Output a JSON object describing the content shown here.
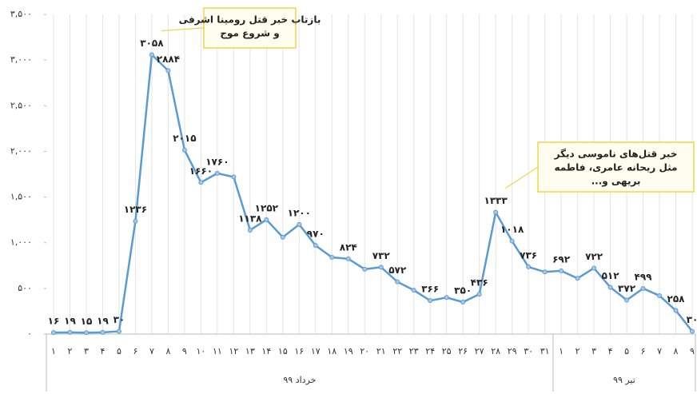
{
  "chart_data": {
    "type": "line",
    "categories": [
      "۱",
      "۲",
      "۳",
      "۴",
      "۵",
      "۶",
      "۷",
      "۸",
      "۹",
      "۱۰",
      "۱۱",
      "۱۲",
      "۱۳",
      "۱۴",
      "۱۵",
      "۱۶",
      "۱۷",
      "۱۸",
      "۱۹",
      "۲۰",
      "۲۱",
      "۲۲",
      "۲۳",
      "۲۴",
      "۲۵",
      "۲۶",
      "۲۷",
      "۲۸",
      "۲۹",
      "۳۰",
      "۳۱",
      "۱",
      "۲",
      "۳",
      "۴",
      "۵",
      "۶",
      "۷",
      "۸",
      "۹"
    ],
    "groups": [
      {
        "label": "خرداد ۹۹",
        "count": 31
      },
      {
        "label": "تیر ۹۹",
        "count": 9
      }
    ],
    "series": [
      {
        "color": "#5b9bd5",
        "values": [
          16,
          19,
          15,
          19,
          30,
          1236,
          3058,
          2884,
          2015,
          1660,
          1760,
          1720,
          1138,
          1252,
          1060,
          1200,
          970,
          840,
          824,
          710,
          732,
          572,
          480,
          366,
          400,
          350,
          436,
          1333,
          1018,
          736,
          680,
          692,
          610,
          722,
          512,
          372,
          499,
          420,
          258,
          30
        ],
        "value_labels": [
          "۱۶",
          "۱۹",
          "۱۵",
          "۱۹",
          "۳۰",
          "۱۲۳۶",
          "۳۰۵۸",
          "۲۸۸۴",
          "۲۰۱۵",
          "۱۶۶۰",
          "۱۷۶۰",
          null,
          "۱۱۳۸",
          "۱۲۵۲",
          null,
          "۱۲۰۰",
          "۹۷۰",
          null,
          "۸۲۴",
          null,
          "۷۳۲",
          "۵۷۲",
          null,
          "۳۶۶",
          null,
          "۳۵۰",
          "۴۳۶",
          "۱۳۳۳",
          "۱۰۱۸",
          "۷۳۶",
          null,
          "۶۹۲",
          null,
          "۷۲۲",
          "۵۱۲",
          "۳۷۲",
          "۴۹۹",
          null,
          "۲۵۸",
          "۳۰"
        ]
      }
    ],
    "ylim": [
      0,
      3500
    ],
    "yticks": [
      {
        "value": 0,
        "label": "۰"
      },
      {
        "value": 500,
        "label": "۵۰۰"
      },
      {
        "value": 1000,
        "label": "۱,۰۰۰"
      },
      {
        "value": 1500,
        "label": "۱,۵۰۰"
      },
      {
        "value": 2000,
        "label": "۲,۰۰۰"
      },
      {
        "value": 2500,
        "label": "۲,۵۰۰"
      },
      {
        "value": 3000,
        "label": "۳,۰۰۰"
      },
      {
        "value": 3500,
        "label": "۳,۵۰۰"
      }
    ],
    "annotations": [
      {
        "lines": [
          "بازتاب خبر قتل رومینا اشرفی",
          "و شروع موج"
        ],
        "index": 6
      },
      {
        "lines": [
          "خبر قتل‌های ناموسی دیگر",
          "مثل ریحانه عامری، فاطمه",
          "بریهی و..."
        ],
        "index": 27
      }
    ]
  }
}
